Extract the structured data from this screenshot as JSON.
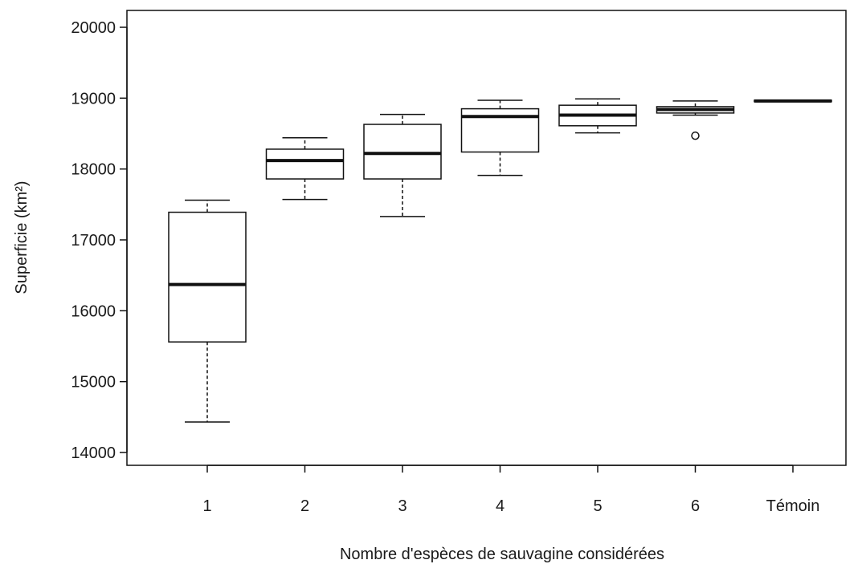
{
  "chart_data": {
    "type": "boxplot",
    "title": "",
    "xlabel": "Nombre d'espèces de sauvagine considérées",
    "ylabel": "Superficie (km²)",
    "ylim": [
      13900,
      20100
    ],
    "yticks": [
      14000,
      15000,
      16000,
      17000,
      18000,
      19000,
      20000
    ],
    "grid": false,
    "categories": [
      "1",
      "2",
      "3",
      "4",
      "5",
      "6",
      "Témoin"
    ],
    "boxes": [
      {
        "category": "1",
        "whisker_low": 14430,
        "q1": 15560,
        "median": 16370,
        "q3": 17390,
        "whisker_high": 17560,
        "outliers": []
      },
      {
        "category": "2",
        "whisker_low": 17570,
        "q1": 17860,
        "median": 18120,
        "q3": 18280,
        "whisker_high": 18440,
        "outliers": []
      },
      {
        "category": "3",
        "whisker_low": 17330,
        "q1": 17860,
        "median": 18220,
        "q3": 18630,
        "whisker_high": 18770,
        "outliers": []
      },
      {
        "category": "4",
        "whisker_low": 17910,
        "q1": 18240,
        "median": 18740,
        "q3": 18850,
        "whisker_high": 18970,
        "outliers": []
      },
      {
        "category": "5",
        "whisker_low": 18510,
        "q1": 18610,
        "median": 18760,
        "q3": 18900,
        "whisker_high": 18990,
        "outliers": []
      },
      {
        "category": "6",
        "whisker_low": 18760,
        "q1": 18790,
        "median": 18840,
        "q3": 18880,
        "whisker_high": 18960,
        "outliers": [
          18470
        ]
      },
      {
        "category": "Témoin",
        "whisker_low": 18950,
        "q1": 18950,
        "median": 18960,
        "q3": 18970,
        "whisker_high": 18970,
        "outliers": []
      }
    ]
  }
}
